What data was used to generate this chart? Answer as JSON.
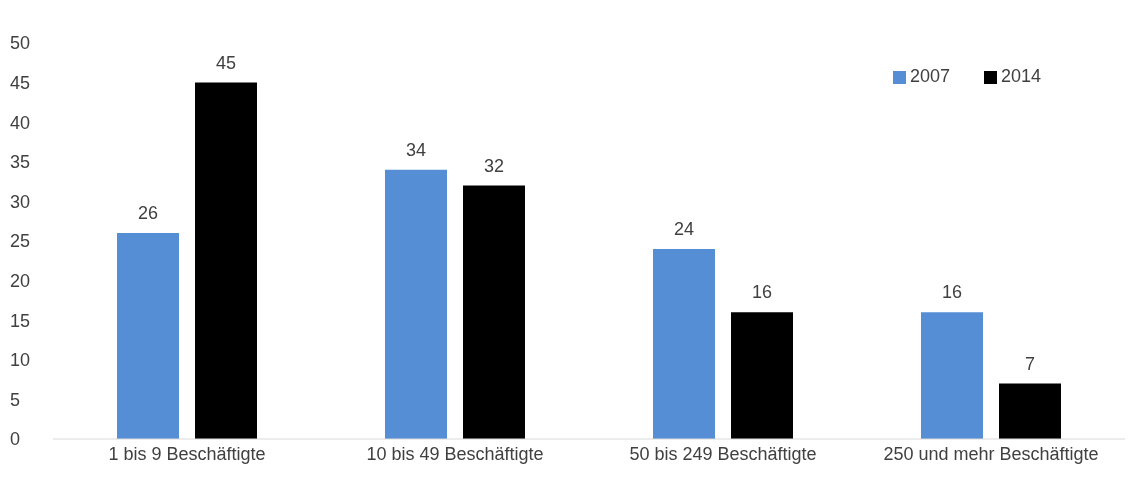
{
  "chart_data": {
    "type": "bar",
    "categories": [
      "1 bis 9 Beschäftigte",
      "10 bis 49 Beschäftigte",
      "50 bis 249 Beschäftigte",
      "250 und mehr Beschäftigte"
    ],
    "series": [
      {
        "name": "2007",
        "color": "#558ed5",
        "values": [
          26,
          34,
          24,
          16
        ]
      },
      {
        "name": "2014",
        "color": "#000000",
        "values": [
          45,
          32,
          16,
          7
        ]
      }
    ],
    "ylim": [
      0,
      50
    ],
    "yticks": [
      0,
      5,
      10,
      15,
      20,
      25,
      30,
      35,
      40,
      45,
      50
    ],
    "grid": false,
    "legend": "top right",
    "data_labels": true
  }
}
